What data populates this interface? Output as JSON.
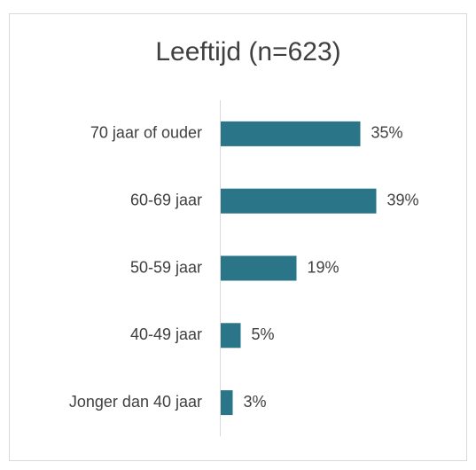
{
  "chart_data": {
    "type": "bar",
    "orientation": "horizontal",
    "title": "Leeftijd (n=623)",
    "categories": [
      "70 jaar of ouder",
      "60-69 jaar",
      "50-59 jaar",
      "40-49 jaar",
      "Jonger dan 40 jaar"
    ],
    "values": [
      35,
      39,
      19,
      5,
      3
    ],
    "value_labels": [
      "35%",
      "39%",
      "19%",
      "5%",
      "3%"
    ],
    "color": "#2a7587"
  }
}
